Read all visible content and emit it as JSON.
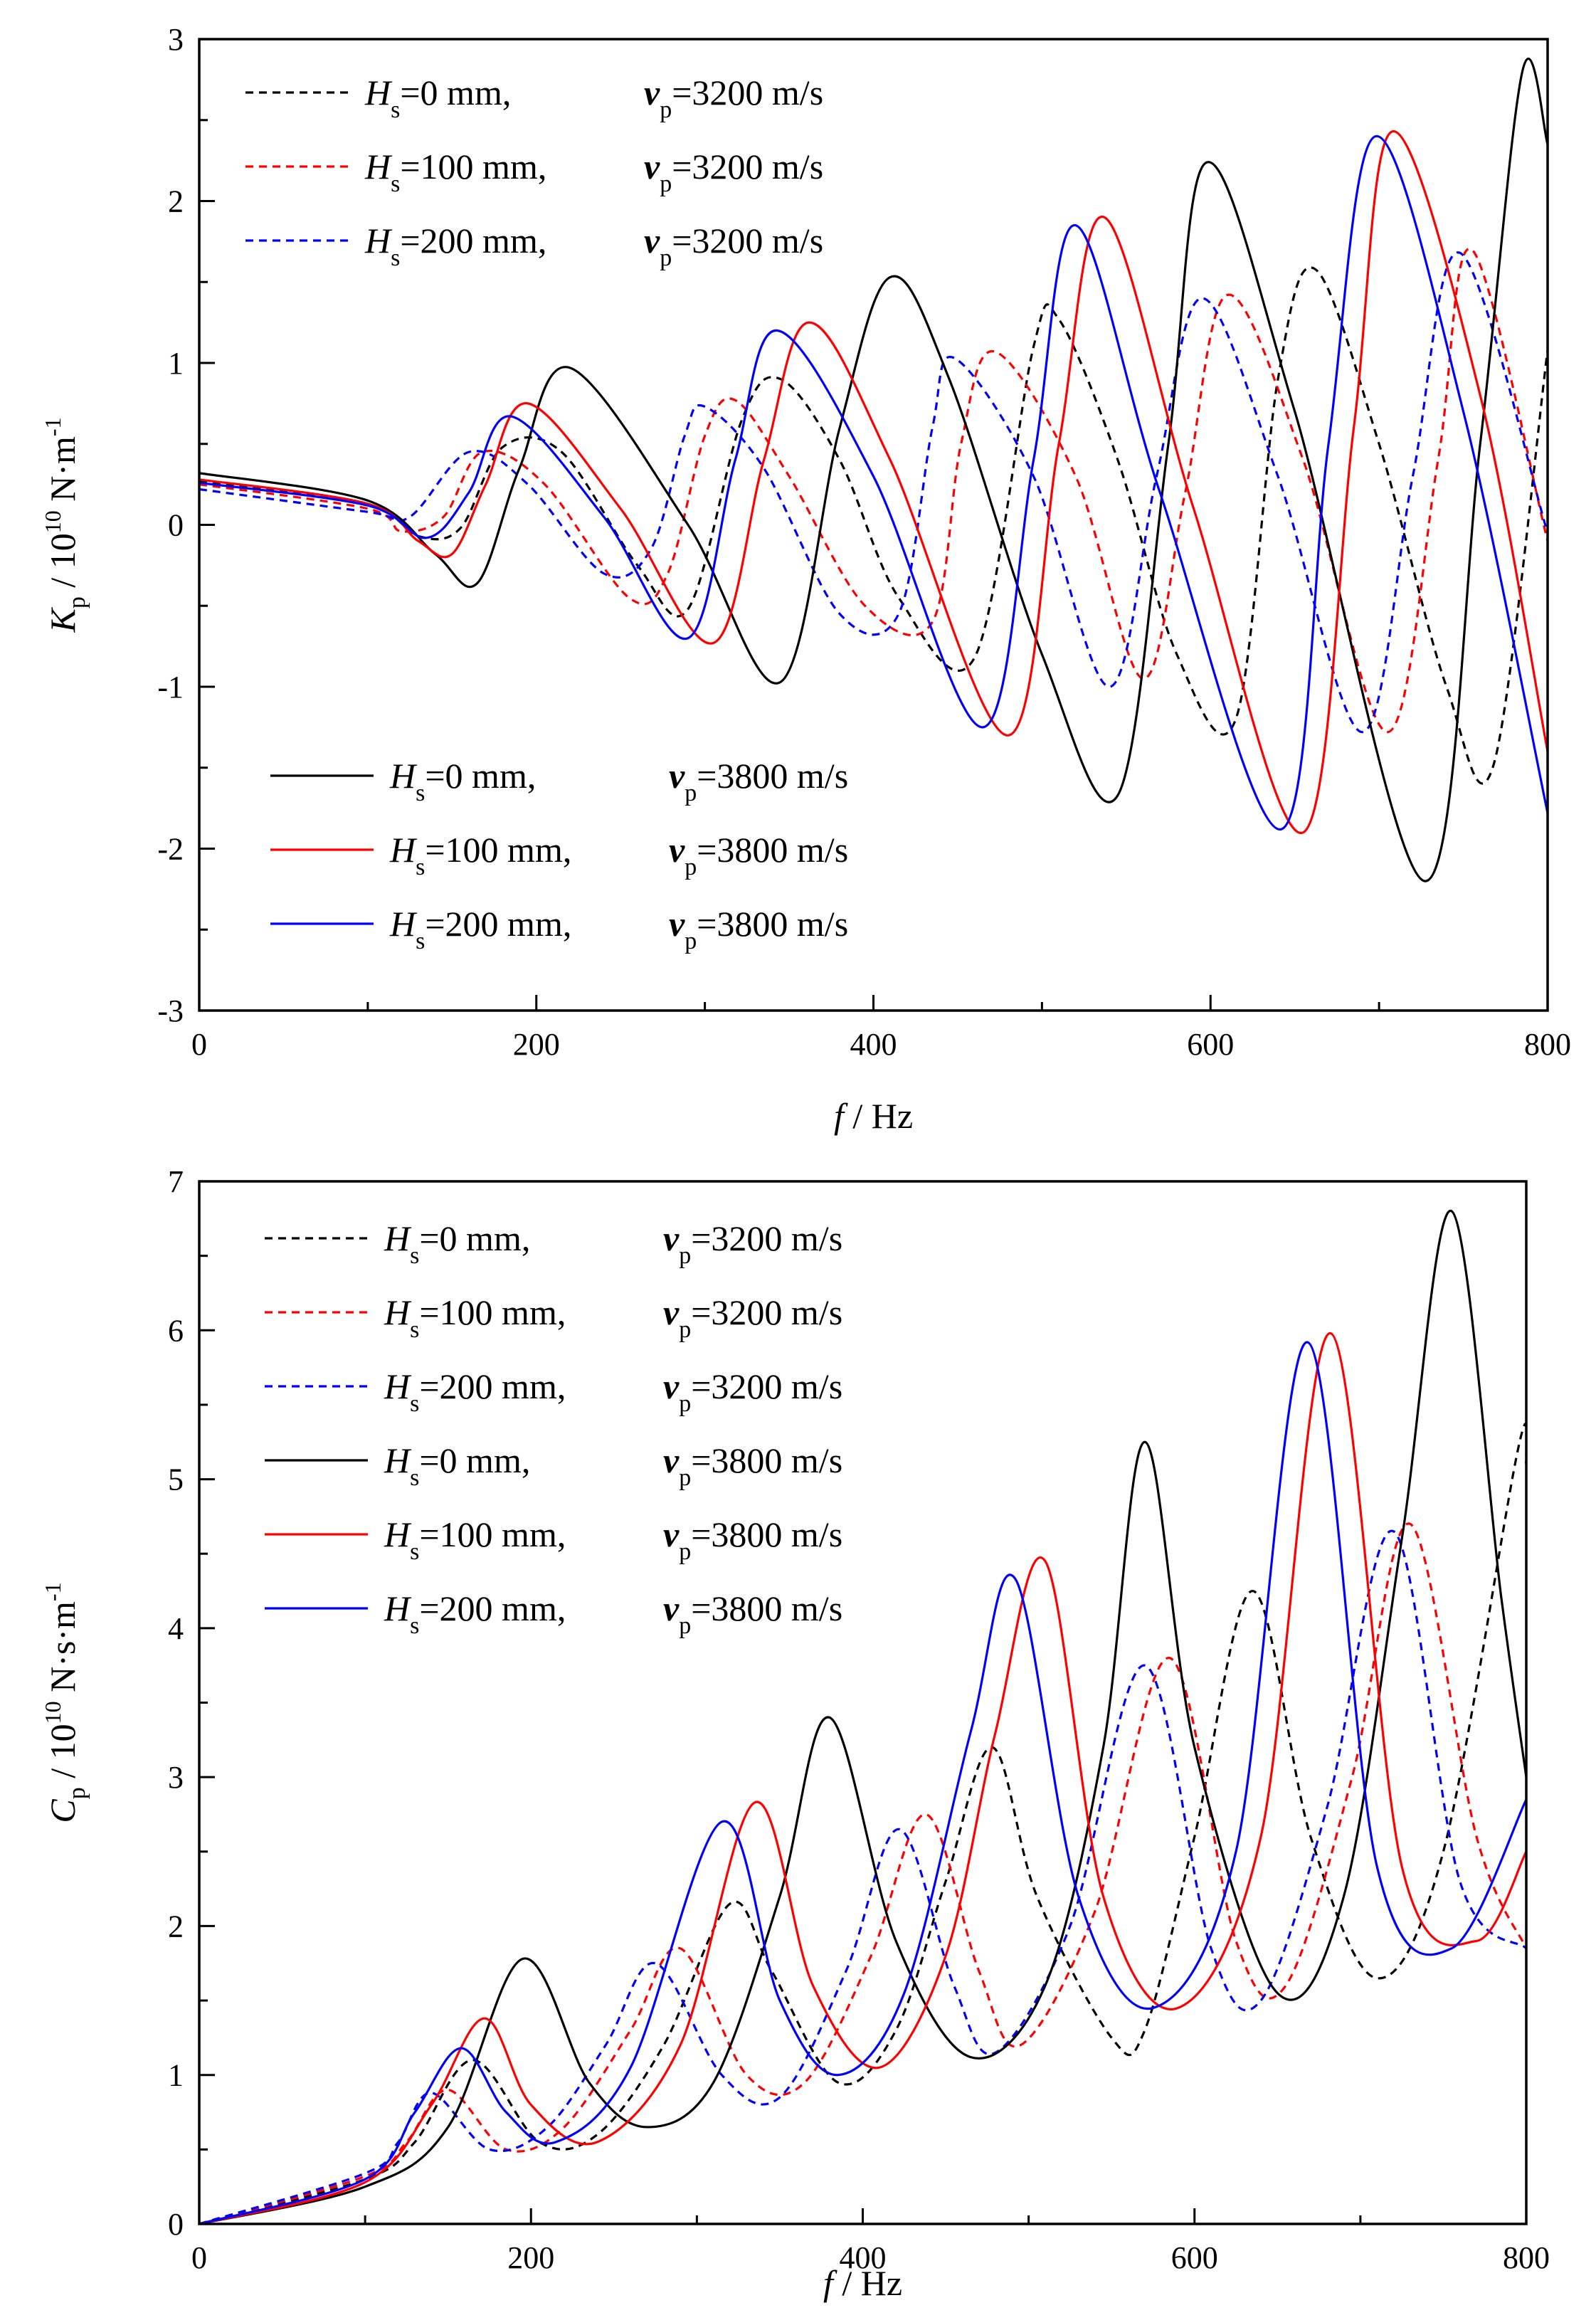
{
  "chart_data": [
    {
      "type": "line",
      "id": "kp",
      "ylabel": {
        "sym": "K",
        "sub": "p",
        "sep": " / 10",
        "pow": "10",
        "unit": " N·m",
        "unitpow": "-1"
      },
      "xlabel": {
        "sym": "f",
        "unit": " / Hz"
      },
      "xlim": [
        0,
        800
      ],
      "ylim": [
        -3,
        3
      ],
      "xticks": [
        0,
        200,
        400,
        600,
        800
      ],
      "yticks": [
        -3,
        -2,
        -1,
        0,
        1,
        2,
        3
      ],
      "xtick_labels": [
        "0",
        "200",
        "400",
        "600",
        "800"
      ],
      "ytick_labels": [
        "-3",
        "-2",
        "-1",
        "0",
        "1",
        "2",
        "3"
      ],
      "legend_groups": [
        {
          "placement": "top-left",
          "entries": [
            0,
            1,
            2
          ]
        },
        {
          "placement": "bottom-left",
          "entries": [
            3,
            4,
            5
          ]
        }
      ],
      "series": [
        {
          "name": "Hs=0 mm, vp=3200 m/s",
          "Hs": "0 mm,",
          "vp": "3200 m/s",
          "color": "#000000",
          "dash": true,
          "x": [
            0,
            100,
            130,
            155,
            180,
            215,
            260,
            290,
            322,
            345,
            380,
            415,
            460,
            495,
            510,
            545,
            580,
            615,
            640,
            662,
            700,
            740,
            768,
            800
          ],
          "y": [
            0.27,
            0.12,
            -0.07,
            -0.02,
            0.48,
            0.45,
            -0.25,
            -0.52,
            0.65,
            0.9,
            0.4,
            -0.45,
            -0.82,
            1.1,
            1.27,
            0.4,
            -0.8,
            -1.2,
            0.9,
            1.58,
            0.5,
            -1.0,
            -1.48,
            1.08
          ]
        },
        {
          "name": "Hs=100 mm, vp=3200 m/s",
          "Hs": "100 mm,",
          "vp": "3200 m/s",
          "color": "#ff0000",
          "dash": true,
          "x": [
            0,
            100,
            120,
            145,
            168,
            205,
            255,
            278,
            300,
            318,
            350,
            395,
            435,
            452,
            472,
            520,
            560,
            585,
            610,
            655,
            705,
            735,
            755,
            800
          ],
          "y": [
            0.25,
            0.1,
            -0.04,
            0.05,
            0.45,
            0.25,
            -0.45,
            -0.3,
            0.55,
            0.77,
            0.3,
            -0.5,
            -0.6,
            0.5,
            1.07,
            0.3,
            -0.95,
            0.2,
            1.42,
            0.4,
            -1.28,
            0.4,
            1.7,
            -0.1
          ]
        },
        {
          "name": "Hs=200 mm, vp=3200 m/s",
          "Hs": "200 mm,",
          "vp": "3200 m/s",
          "color": "#0000ff",
          "dash": true,
          "x": [
            0,
            100,
            125,
            160,
            195,
            240,
            268,
            288,
            300,
            335,
            380,
            415,
            435,
            448,
            495,
            540,
            568,
            595,
            640,
            690,
            720,
            748,
            800
          ],
          "y": [
            0.22,
            0.08,
            0.05,
            0.45,
            0.25,
            -0.3,
            -0.15,
            0.55,
            0.73,
            0.35,
            -0.55,
            -0.55,
            0.6,
            1.03,
            0.3,
            -1.0,
            0.3,
            1.4,
            0.3,
            -1.28,
            0.3,
            1.68,
            -0.05
          ]
        },
        {
          "name": "Hs=0 mm, vp=3800 m/s",
          "Hs": "0 mm,",
          "vp": "3800 m/s",
          "color": "#000000",
          "dash": false,
          "x": [
            0,
            100,
            140,
            165,
            190,
            220,
            290,
            345,
            380,
            410,
            445,
            500,
            545,
            575,
            598,
            650,
            727,
            760,
            785,
            800
          ],
          "y": [
            0.32,
            0.15,
            -0.18,
            -0.36,
            0.35,
            0.97,
            0.0,
            -0.97,
            0.6,
            1.53,
            0.9,
            -0.8,
            -1.67,
            0.5,
            2.24,
            0.7,
            -2.2,
            0.5,
            2.8,
            2.35
          ]
        },
        {
          "name": "Hs=100 mm, vp=3800 m/s",
          "Hs": "100 mm,",
          "vp": "3800 m/s",
          "color": "#ff0000",
          "dash": false,
          "x": [
            0,
            100,
            130,
            150,
            170,
            195,
            250,
            305,
            335,
            362,
            410,
            480,
            510,
            537,
            590,
            655,
            685,
            708,
            760,
            800
          ],
          "y": [
            0.28,
            0.13,
            -0.1,
            -0.18,
            0.25,
            0.75,
            0.1,
            -0.73,
            0.4,
            1.25,
            0.4,
            -1.3,
            0.5,
            1.9,
            0.1,
            -1.9,
            0.6,
            2.43,
            0.8,
            -1.4
          ]
        },
        {
          "name": "Hs=200 mm, vp=3800 m/s",
          "Hs": "200 mm,",
          "vp": "3800 m/s",
          "color": "#0000ff",
          "dash": false,
          "x": [
            0,
            100,
            135,
            160,
            185,
            240,
            290,
            318,
            343,
            400,
            465,
            495,
            520,
            570,
            642,
            670,
            698,
            750,
            800
          ],
          "y": [
            0.26,
            0.12,
            -0.08,
            0.2,
            0.67,
            0.05,
            -0.7,
            0.4,
            1.2,
            0.3,
            -1.25,
            0.4,
            1.85,
            0.2,
            -1.88,
            0.5,
            2.4,
            0.7,
            -1.78
          ]
        }
      ]
    },
    {
      "type": "line",
      "id": "cp",
      "ylabel": {
        "sym": "C",
        "sub": "p",
        "sep": " / 10",
        "pow": "10",
        "unit": " N·s·m",
        "unitpow": "-1"
      },
      "xlabel": {
        "sym": "f",
        "unit": " / Hz"
      },
      "xlim": [
        0,
        800
      ],
      "ylim": [
        0,
        7
      ],
      "xticks": [
        0,
        200,
        400,
        600,
        800
      ],
      "yticks": [
        0,
        1,
        2,
        3,
        4,
        5,
        6,
        7
      ],
      "xtick_labels": [
        "0",
        "200",
        "400",
        "600",
        "800"
      ],
      "ytick_labels": [
        "0",
        "1",
        "2",
        "3",
        "4",
        "5",
        "6",
        "7"
      ],
      "legend_groups": [
        {
          "placement": "top-left",
          "entries": [
            0,
            1,
            2,
            3,
            4,
            5
          ]
        }
      ],
      "series": [
        {
          "name": "Hs=0 mm, vp=3200 m/s",
          "Hs": "0 mm,",
          "vp": "3200 m/s",
          "color": "#000000",
          "dash": true,
          "x": [
            0,
            100,
            130,
            165,
            205,
            240,
            280,
            320,
            345,
            385,
            420,
            450,
            478,
            505,
            550,
            570,
            600,
            635,
            670,
            710,
            750,
            795,
            800
          ],
          "y": [
            0,
            0.3,
            0.55,
            1.1,
            0.55,
            0.6,
            1.2,
            2.15,
            1.7,
            0.95,
            1.3,
            2.3,
            3.2,
            2.2,
            1.25,
            1.3,
            2.6,
            4.25,
            2.6,
            1.65,
            2.5,
            5.2,
            5.1
          ]
        },
        {
          "name": "Hs=100 mm, vp=3200 m/s",
          "Hs": "100 mm,",
          "vp": "3200 m/s",
          "color": "#ff0000",
          "dash": true,
          "x": [
            0,
            100,
            125,
            150,
            185,
            220,
            260,
            290,
            330,
            365,
            405,
            438,
            470,
            495,
            540,
            585,
            625,
            655,
            695,
            730,
            770,
            800
          ],
          "y": [
            0,
            0.32,
            0.55,
            0.9,
            0.5,
            0.65,
            1.3,
            1.85,
            1.0,
            0.95,
            1.8,
            2.75,
            1.7,
            1.2,
            2.1,
            3.8,
            1.9,
            1.6,
            3.0,
            4.7,
            2.6,
            1.85
          ]
        },
        {
          "name": "Hs=200 mm, vp=3200 m/s",
          "Hs": "200 mm,",
          "vp": "3200 m/s",
          "color": "#0000ff",
          "dash": true,
          "x": [
            0,
            100,
            120,
            140,
            175,
            210,
            245,
            275,
            315,
            350,
            390,
            422,
            455,
            480,
            525,
            570,
            610,
            640,
            680,
            720,
            760,
            800
          ],
          "y": [
            0,
            0.34,
            0.55,
            0.88,
            0.5,
            0.65,
            1.2,
            1.75,
            1.0,
            0.85,
            1.7,
            2.65,
            1.6,
            1.15,
            2.0,
            3.75,
            1.85,
            1.5,
            2.8,
            4.65,
            2.3,
            1.85
          ]
        },
        {
          "name": "Hs=0 mm, vp=3800 m/s",
          "Hs": "0 mm,",
          "vp": "3800 m/s",
          "color": "#000000",
          "dash": false,
          "x": [
            0,
            100,
            150,
            195,
            235,
            270,
            310,
            350,
            380,
            420,
            465,
            510,
            545,
            570,
            600,
            650,
            690,
            725,
            755,
            785,
            800
          ],
          "y": [
            0,
            0.25,
            0.65,
            1.78,
            0.95,
            0.65,
            0.95,
            2.2,
            3.4,
            1.9,
            1.12,
            1.6,
            3.2,
            5.25,
            3.2,
            1.55,
            2.2,
            4.6,
            6.8,
            4.2,
            3.0
          ]
        },
        {
          "name": "Hs=100 mm, vp=3800 m/s",
          "Hs": "100 mm,",
          "vp": "3800 m/s",
          "color": "#ff0000",
          "dash": false,
          "x": [
            0,
            100,
            140,
            172,
            200,
            240,
            290,
            335,
            370,
            410,
            450,
            480,
            510,
            545,
            590,
            640,
            682,
            725,
            770,
            800
          ],
          "y": [
            0,
            0.28,
            0.8,
            1.38,
            0.8,
            0.55,
            1.2,
            2.83,
            1.6,
            1.05,
            1.8,
            3.3,
            4.45,
            2.2,
            1.45,
            2.6,
            5.98,
            2.4,
            1.9,
            2.5
          ]
        },
        {
          "name": "Hs=200 mm, vp=3800 m/s",
          "Hs": "200 mm,",
          "vp": "3800 m/s",
          "color": "#0000ff",
          "dash": false,
          "x": [
            0,
            100,
            130,
            158,
            185,
            215,
            260,
            315,
            350,
            385,
            425,
            465,
            492,
            530,
            575,
            625,
            668,
            710,
            755,
            800
          ],
          "y": [
            0,
            0.3,
            0.75,
            1.18,
            0.75,
            0.55,
            1.05,
            2.7,
            1.5,
            1.0,
            1.55,
            3.3,
            4.33,
            2.2,
            1.45,
            2.5,
            5.92,
            2.4,
            1.85,
            2.85
          ]
        }
      ]
    }
  ]
}
